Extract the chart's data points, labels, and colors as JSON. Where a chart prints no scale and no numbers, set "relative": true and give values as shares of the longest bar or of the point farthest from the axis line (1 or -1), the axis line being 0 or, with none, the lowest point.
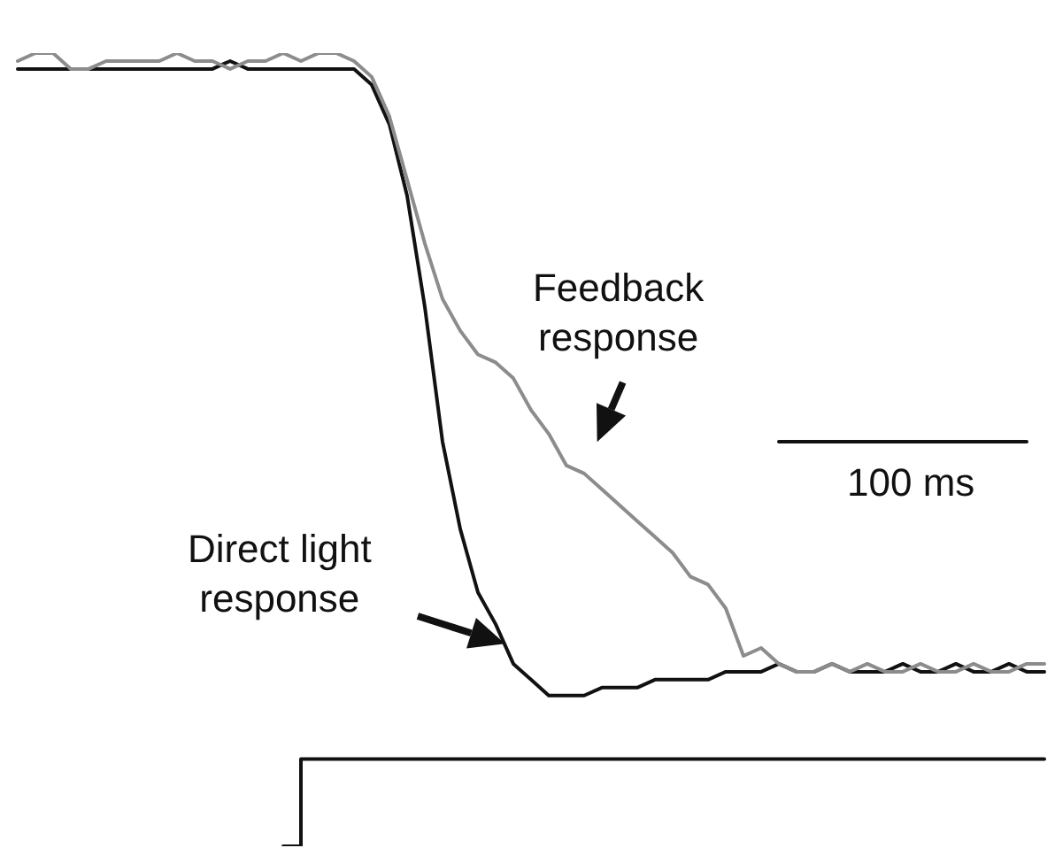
{
  "chart_data": {
    "type": "line",
    "relative": true,
    "legend": false,
    "marker": "none",
    "categories": [
      null,
      null,
      null,
      null,
      null,
      null,
      null,
      null,
      null,
      null,
      null,
      null,
      null,
      null,
      null,
      null,
      null,
      null,
      null,
      null,
      null,
      null,
      null,
      null,
      null,
      null,
      null,
      null,
      null,
      null,
      null,
      null,
      null,
      null,
      null,
      null,
      null,
      null,
      null,
      null,
      null,
      null,
      null,
      null,
      null,
      null,
      null,
      null,
      null,
      null,
      null,
      null,
      null,
      null,
      null,
      null,
      null,
      null,
      null
    ],
    "series": [
      {
        "color": "#8c8c8c",
        "values": [
          0.99,
          1.0,
          1.0,
          0.98,
          0.98,
          0.99,
          0.99,
          0.99,
          0.99,
          1.0,
          0.99,
          0.99,
          0.98,
          0.99,
          0.99,
          1.0,
          0.99,
          1.0,
          1.0,
          0.99,
          0.97,
          0.92,
          0.84,
          0.76,
          0.69,
          0.65,
          0.62,
          0.61,
          0.59,
          0.55,
          0.52,
          0.48,
          0.47,
          0.45,
          0.43,
          0.41,
          0.39,
          0.37,
          0.34,
          0.33,
          0.3,
          0.24,
          0.25,
          0.23,
          0.22,
          0.22,
          0.23,
          0.22,
          0.23,
          0.22,
          0.22,
          0.23,
          0.22,
          0.22,
          0.23,
          0.22,
          0.22,
          0.23,
          0.23
        ]
      },
      {
        "color": "#111111",
        "values": [
          0.98,
          0.98,
          0.98,
          0.98,
          0.98,
          0.98,
          0.98,
          0.98,
          0.98,
          0.98,
          0.98,
          0.98,
          0.99,
          0.98,
          0.98,
          0.98,
          0.98,
          0.98,
          0.98,
          0.98,
          0.96,
          0.91,
          0.82,
          0.68,
          0.51,
          0.4,
          0.32,
          0.28,
          0.23,
          0.21,
          0.19,
          0.19,
          0.19,
          0.2,
          0.2,
          0.2,
          0.21,
          0.21,
          0.21,
          0.21,
          0.22,
          0.22,
          0.22,
          0.23,
          0.22,
          0.22,
          0.23,
          0.22,
          0.22,
          0.22,
          0.23,
          0.22,
          0.22,
          0.23,
          0.22,
          0.22,
          0.23,
          0.22,
          0.22
        ]
      },
      {
        "color": "#111111",
        "type": "step",
        "values": [
          null,
          null,
          null,
          null,
          null,
          null,
          null,
          null,
          null,
          null,
          null,
          null,
          null,
          null,
          null,
          0,
          0.11,
          0.11,
          0.11,
          0.11,
          0.11,
          0.11,
          0.11,
          0.11,
          0.11,
          0.11,
          0.11,
          0.11,
          0.11,
          0.11,
          0.11,
          0.11,
          0.11,
          0.11,
          0.11,
          0.11,
          0.11,
          0.11,
          0.11,
          0.11,
          0.11,
          0.11,
          0.11,
          0.11,
          0.11,
          0.11,
          0.11,
          0.11,
          0.11,
          0.11,
          0.11,
          0.11,
          0.11,
          0.11,
          0.11,
          0.11,
          0.11,
          0.11,
          0.11
        ]
      },
      {
        "color": "#111111",
        "values": [
          null,
          null,
          null,
          null,
          null,
          null,
          null,
          null,
          null,
          null,
          null,
          null,
          null,
          null,
          null,
          null,
          null,
          null,
          null,
          null,
          null,
          null,
          null,
          null,
          null,
          null,
          null,
          null,
          null,
          null,
          null,
          null,
          null,
          null,
          null,
          null,
          null,
          null,
          null,
          null,
          null,
          null,
          null,
          0.51,
          0.51,
          0.51,
          0.51,
          0.51,
          0.51,
          0.51,
          0.51,
          0.51,
          0.51,
          0.51,
          0.51,
          0.51,
          0.51,
          0.51,
          null
        ]
      }
    ],
    "annotations": [
      "Feedback\nresponse",
      "Direct light\nresponse",
      "100 ms"
    ]
  }
}
